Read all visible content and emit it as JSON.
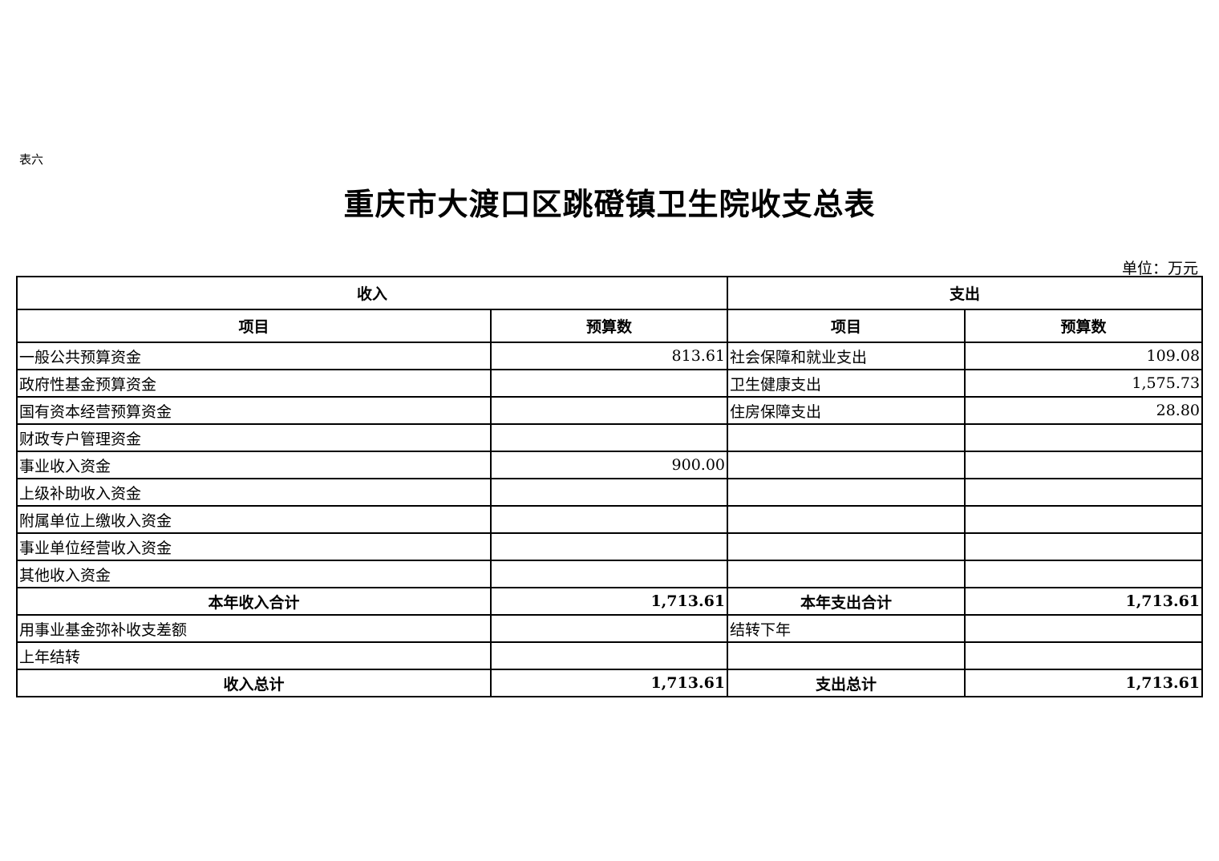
{
  "doc_label": "表六",
  "title": "重庆市大渡口区跳磴镇卫生院收支总表",
  "unit": "单位：万元",
  "headers": {
    "income": "收入",
    "expense": "支出",
    "item": "项目",
    "budget": "预算数"
  },
  "rows": [
    {
      "income_item": "一般公共预算资金",
      "income_value": "813.61",
      "expense_item": "社会保障和就业支出",
      "expense_value": "109.08"
    },
    {
      "income_item": "政府性基金预算资金",
      "income_value": "",
      "expense_item": "卫生健康支出",
      "expense_value": "1,575.73"
    },
    {
      "income_item": "国有资本经营预算资金",
      "income_value": "",
      "expense_item": "住房保障支出",
      "expense_value": "28.80"
    },
    {
      "income_item": "财政专户管理资金",
      "income_value": "",
      "expense_item": "",
      "expense_value": ""
    },
    {
      "income_item": "事业收入资金",
      "income_value": "900.00",
      "expense_item": "",
      "expense_value": ""
    },
    {
      "income_item": "上级补助收入资金",
      "income_value": "",
      "expense_item": "",
      "expense_value": ""
    },
    {
      "income_item": "附属单位上缴收入资金",
      "income_value": "",
      "expense_item": "",
      "expense_value": ""
    },
    {
      "income_item": "事业单位经营收入资金",
      "income_value": "",
      "expense_item": "",
      "expense_value": ""
    },
    {
      "income_item": "其他收入资金",
      "income_value": "",
      "expense_item": "",
      "expense_value": ""
    },
    {
      "income_item": "本年收入合计",
      "income_value": "1,713.61",
      "expense_item": "本年支出合计",
      "expense_value": "1,713.61",
      "bold": true
    },
    {
      "income_item": "用事业基金弥补收支差额",
      "income_value": "",
      "expense_item": "结转下年",
      "expense_value": ""
    },
    {
      "income_item": "上年结转",
      "income_value": "",
      "expense_item": "",
      "expense_value": ""
    },
    {
      "income_item": "收入总计",
      "income_value": "1,713.61",
      "expense_item": "支出总计",
      "expense_value": "1,713.61",
      "bold": true
    }
  ]
}
